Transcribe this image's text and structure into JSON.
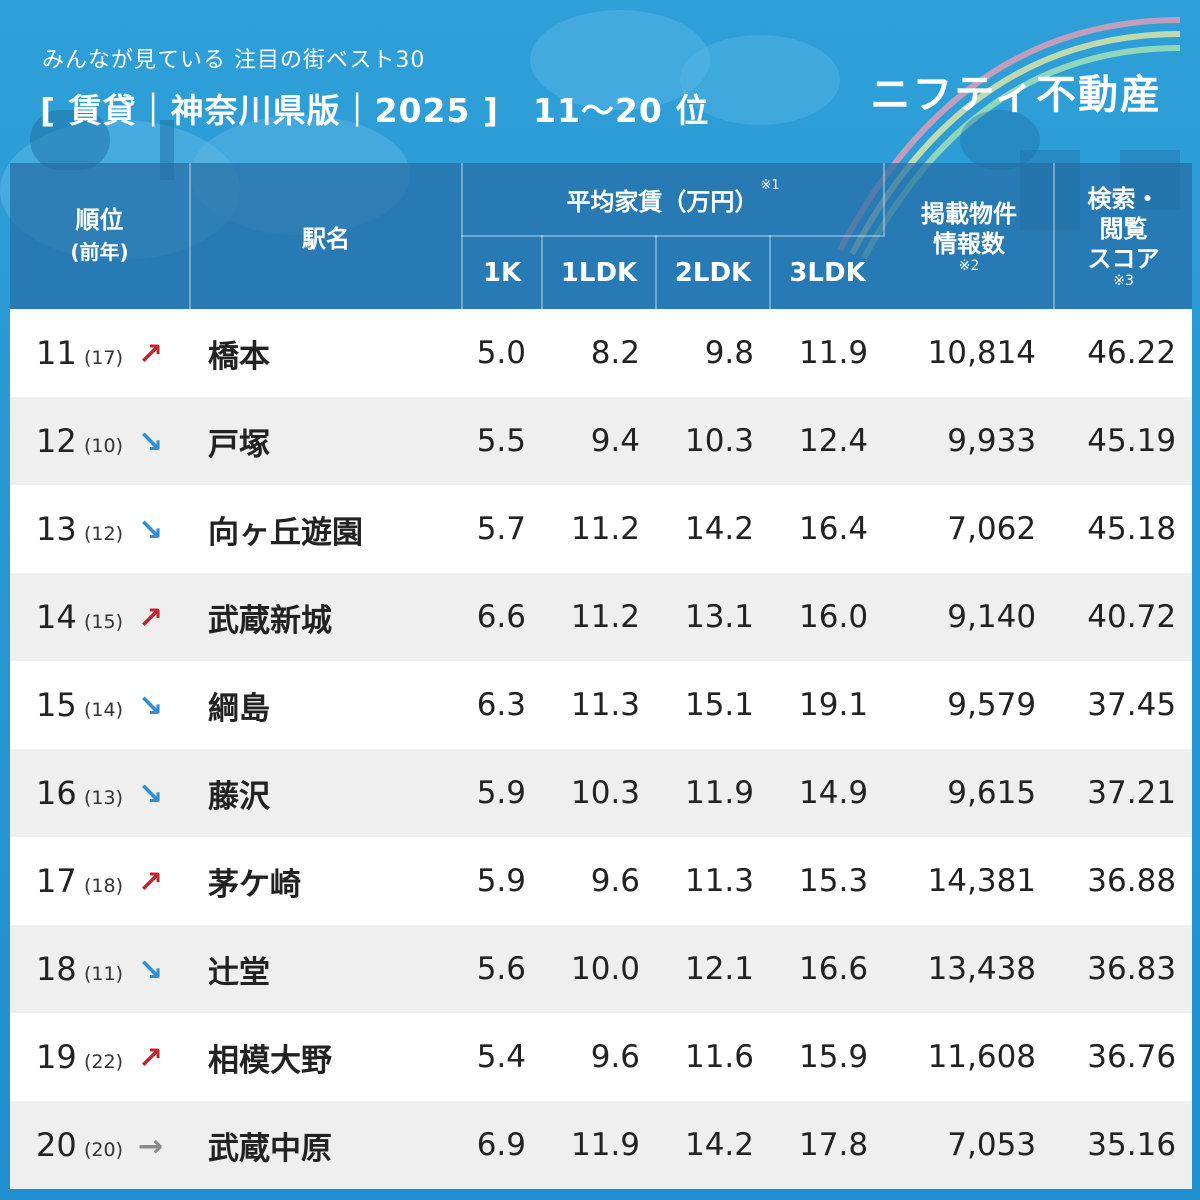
{
  "header": {
    "subtitle": "みんなが見ている 注目の街ベスト30",
    "title": "[ 賃貸｜神奈川県版｜2025 ]　11〜20 位",
    "brand": "ニフティ不動産"
  },
  "table": {
    "columns": {
      "rank": "順位",
      "rank_prev": "(前年)",
      "station": "駅名",
      "rent_group": "平均家賃（万円）",
      "rent_note": "※1",
      "k1": "1K",
      "ldk1": "1LDK",
      "ldk2": "2LDK",
      "ldk3": "3LDK",
      "listings_line1": "掲載物件",
      "listings_line2": "情報数",
      "listings_note": "※2",
      "score_line1": "検索・",
      "score_line2": "閲覧",
      "score_line3": "スコア",
      "score_note": "※3"
    },
    "arrows": {
      "up": "↗",
      "down": "↘",
      "same": "→"
    },
    "rows": [
      {
        "rank": "11",
        "prev": "(17)",
        "trend": "up",
        "arrow": "↗",
        "station": "橋本",
        "k1": "5.0",
        "ldk1": "8.2",
        "ldk2": "9.8",
        "ldk3": "11.9",
        "listings": "10,814",
        "score": "46.22"
      },
      {
        "rank": "12",
        "prev": "(10)",
        "trend": "down",
        "arrow": "↘",
        "station": "戸塚",
        "k1": "5.5",
        "ldk1": "9.4",
        "ldk2": "10.3",
        "ldk3": "12.4",
        "listings": "9,933",
        "score": "45.19"
      },
      {
        "rank": "13",
        "prev": "(12)",
        "trend": "down",
        "arrow": "↘",
        "station": "向ヶ丘遊園",
        "k1": "5.7",
        "ldk1": "11.2",
        "ldk2": "14.2",
        "ldk3": "16.4",
        "listings": "7,062",
        "score": "45.18"
      },
      {
        "rank": "14",
        "prev": "(15)",
        "trend": "up",
        "arrow": "↗",
        "station": "武蔵新城",
        "k1": "6.6",
        "ldk1": "11.2",
        "ldk2": "13.1",
        "ldk3": "16.0",
        "listings": "9,140",
        "score": "40.72"
      },
      {
        "rank": "15",
        "prev": "(14)",
        "trend": "down",
        "arrow": "↘",
        "station": "綱島",
        "k1": "6.3",
        "ldk1": "11.3",
        "ldk2": "15.1",
        "ldk3": "19.1",
        "listings": "9,579",
        "score": "37.45"
      },
      {
        "rank": "16",
        "prev": "(13)",
        "trend": "down",
        "arrow": "↘",
        "station": "藤沢",
        "k1": "5.9",
        "ldk1": "10.3",
        "ldk2": "11.9",
        "ldk3": "14.9",
        "listings": "9,615",
        "score": "37.21"
      },
      {
        "rank": "17",
        "prev": "(18)",
        "trend": "up",
        "arrow": "↗",
        "station": "茅ケ崎",
        "k1": "5.9",
        "ldk1": "9.6",
        "ldk2": "11.3",
        "ldk3": "15.3",
        "listings": "14,381",
        "score": "36.88"
      },
      {
        "rank": "18",
        "prev": "(11)",
        "trend": "down",
        "arrow": "↘",
        "station": "辻堂",
        "k1": "5.6",
        "ldk1": "10.0",
        "ldk2": "12.1",
        "ldk3": "16.6",
        "listings": "13,438",
        "score": "36.83"
      },
      {
        "rank": "19",
        "prev": "(22)",
        "trend": "up",
        "arrow": "↗",
        "station": "相模大野",
        "k1": "5.4",
        "ldk1": "9.6",
        "ldk2": "11.6",
        "ldk3": "15.9",
        "listings": "11,608",
        "score": "36.76"
      },
      {
        "rank": "20",
        "prev": "(20)",
        "trend": "same",
        "arrow": "→",
        "station": "武蔵中原",
        "k1": "6.9",
        "ldk1": "11.9",
        "ldk2": "14.2",
        "ldk3": "17.8",
        "listings": "7,053",
        "score": "35.16"
      }
    ]
  },
  "colors": {
    "background": "#2f9fd8",
    "header_cell": "#3c7fb3",
    "row_alt": "#efefef",
    "up": "#c0262d",
    "down": "#2b8fd0",
    "same": "#8a8a8a"
  },
  "chart_data": {
    "type": "table",
    "title": "[ 賃貸｜神奈川県版｜2025 ]　11〜20 位",
    "columns": [
      "順位",
      "前年",
      "駅名",
      "1K",
      "1LDK",
      "2LDK",
      "3LDK",
      "掲載物件情報数",
      "検索・閲覧スコア"
    ],
    "rows": [
      [
        11,
        17,
        "橋本",
        5.0,
        8.2,
        9.8,
        11.9,
        10814,
        46.22
      ],
      [
        12,
        10,
        "戸塚",
        5.5,
        9.4,
        10.3,
        12.4,
        9933,
        45.19
      ],
      [
        13,
        12,
        "向ヶ丘遊園",
        5.7,
        11.2,
        14.2,
        16.4,
        7062,
        45.18
      ],
      [
        14,
        15,
        "武蔵新城",
        6.6,
        11.2,
        13.1,
        16.0,
        9140,
        40.72
      ],
      [
        15,
        14,
        "綱島",
        6.3,
        11.3,
        15.1,
        19.1,
        9579,
        37.45
      ],
      [
        16,
        13,
        "藤沢",
        5.9,
        10.3,
        11.9,
        14.9,
        9615,
        37.21
      ],
      [
        17,
        18,
        "茅ケ崎",
        5.9,
        9.6,
        11.3,
        15.3,
        14381,
        36.88
      ],
      [
        18,
        11,
        "辻堂",
        5.6,
        10.0,
        12.1,
        16.6,
        13438,
        36.83
      ],
      [
        19,
        22,
        "相模大野",
        5.4,
        9.6,
        11.6,
        15.9,
        11608,
        36.76
      ],
      [
        20,
        20,
        "武蔵中原",
        6.9,
        11.9,
        14.2,
        17.8,
        7053,
        35.16
      ]
    ]
  }
}
